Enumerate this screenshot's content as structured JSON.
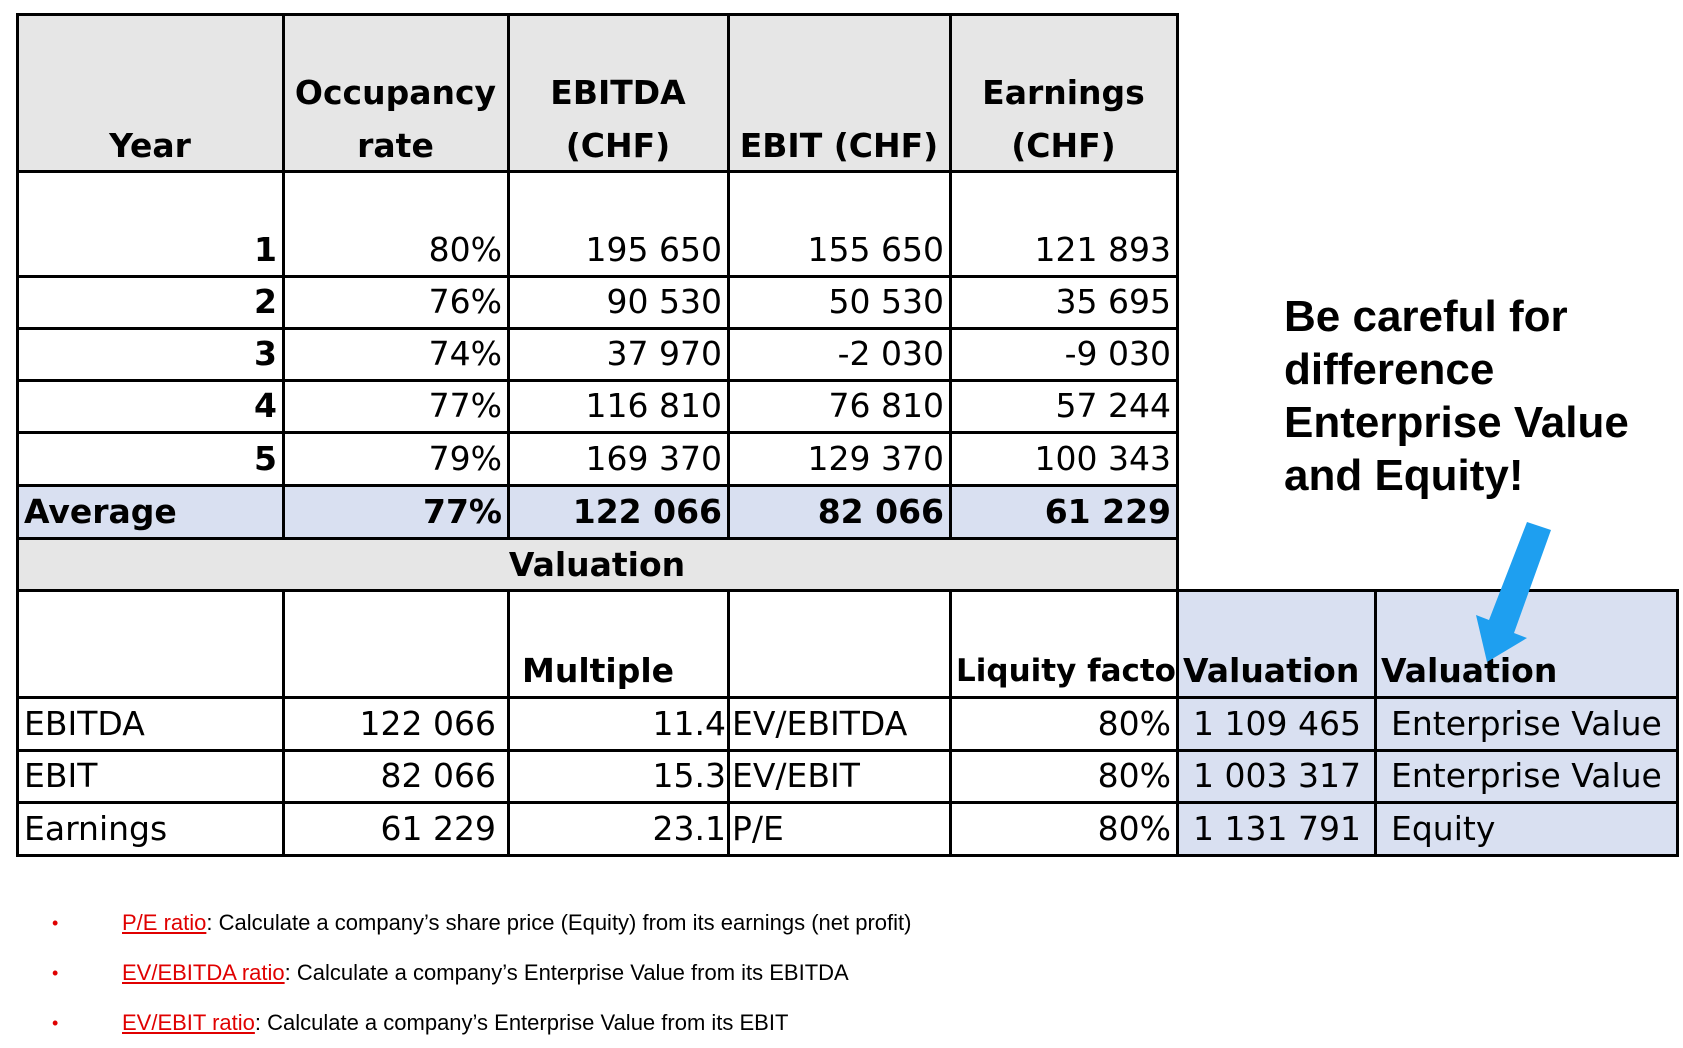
{
  "top_table": {
    "headers": {
      "year": "Year",
      "occupancy_l1": "Occupancy",
      "occupancy_l2": "rate",
      "ebitda_l1": "EBITDA",
      "ebitda_l2": "(CHF)",
      "ebit": "EBIT (CHF)",
      "earnings_l1": "Earnings",
      "earnings_l2": "(CHF)"
    },
    "rows": [
      {
        "year": "1",
        "occupancy": "80%",
        "ebitda": "195 650",
        "ebit": "155 650",
        "earnings": "121 893"
      },
      {
        "year": "2",
        "occupancy": "76%",
        "ebitda": "90 530",
        "ebit": "50 530",
        "earnings": "35 695"
      },
      {
        "year": "3",
        "occupancy": "74%",
        "ebitda": "37 970",
        "ebit": "-2 030",
        "earnings": "-9 030"
      },
      {
        "year": "4",
        "occupancy": "77%",
        "ebitda": "116 810",
        "ebit": "76 810",
        "earnings": "57 244"
      },
      {
        "year": "5",
        "occupancy": "79%",
        "ebitda": "169 370",
        "ebit": "129 370",
        "earnings": "100 343"
      }
    ],
    "average": {
      "label": "Average",
      "occupancy": "77%",
      "ebitda": "122 066",
      "ebit": "82 066",
      "earnings": "61 229"
    }
  },
  "valuation_table": {
    "title": "Valuation",
    "headers": {
      "multiple": "Multiple",
      "liquidity": "Liquity factor",
      "valuation_1": "Valuation",
      "valuation_2": "Valuation"
    },
    "rows": [
      {
        "label": "EBITDA",
        "base": "122 066",
        "multiple": "11.4",
        "ratio": "EV/EBITDA",
        "factor": "80%",
        "value": "1 109 465",
        "type": "Enterprise Value"
      },
      {
        "label": "EBIT",
        "base": "82 066",
        "multiple": "15.3",
        "ratio": "EV/EBIT",
        "factor": "80%",
        "value": "1 003 317",
        "type": "Enterprise Value"
      },
      {
        "label": "Earnings",
        "base": "61 229",
        "multiple": "23.1",
        "ratio": "P/E",
        "factor": "80%",
        "value": "1 131 791",
        "type": "Equity"
      }
    ]
  },
  "callout": {
    "line1": "Be careful for",
    "line2": "difference",
    "line3": "Enterprise Value",
    "line4": "and Equity!",
    "arrow_color": "#1e9ff0"
  },
  "notes": [
    {
      "bullet": "•",
      "term": "P/E ratio",
      "text": ": Calculate a company’s share price (Equity) from its earnings (net profit)"
    },
    {
      "bullet": "•",
      "term": "EV/EBITDA ratio",
      "text": ": Calculate a company’s Enterprise Value from its EBITDA"
    },
    {
      "bullet": "•",
      "term": "EV/EBIT ratio",
      "text": ": Calculate a company’s Enterprise Value from its EBIT"
    }
  ]
}
